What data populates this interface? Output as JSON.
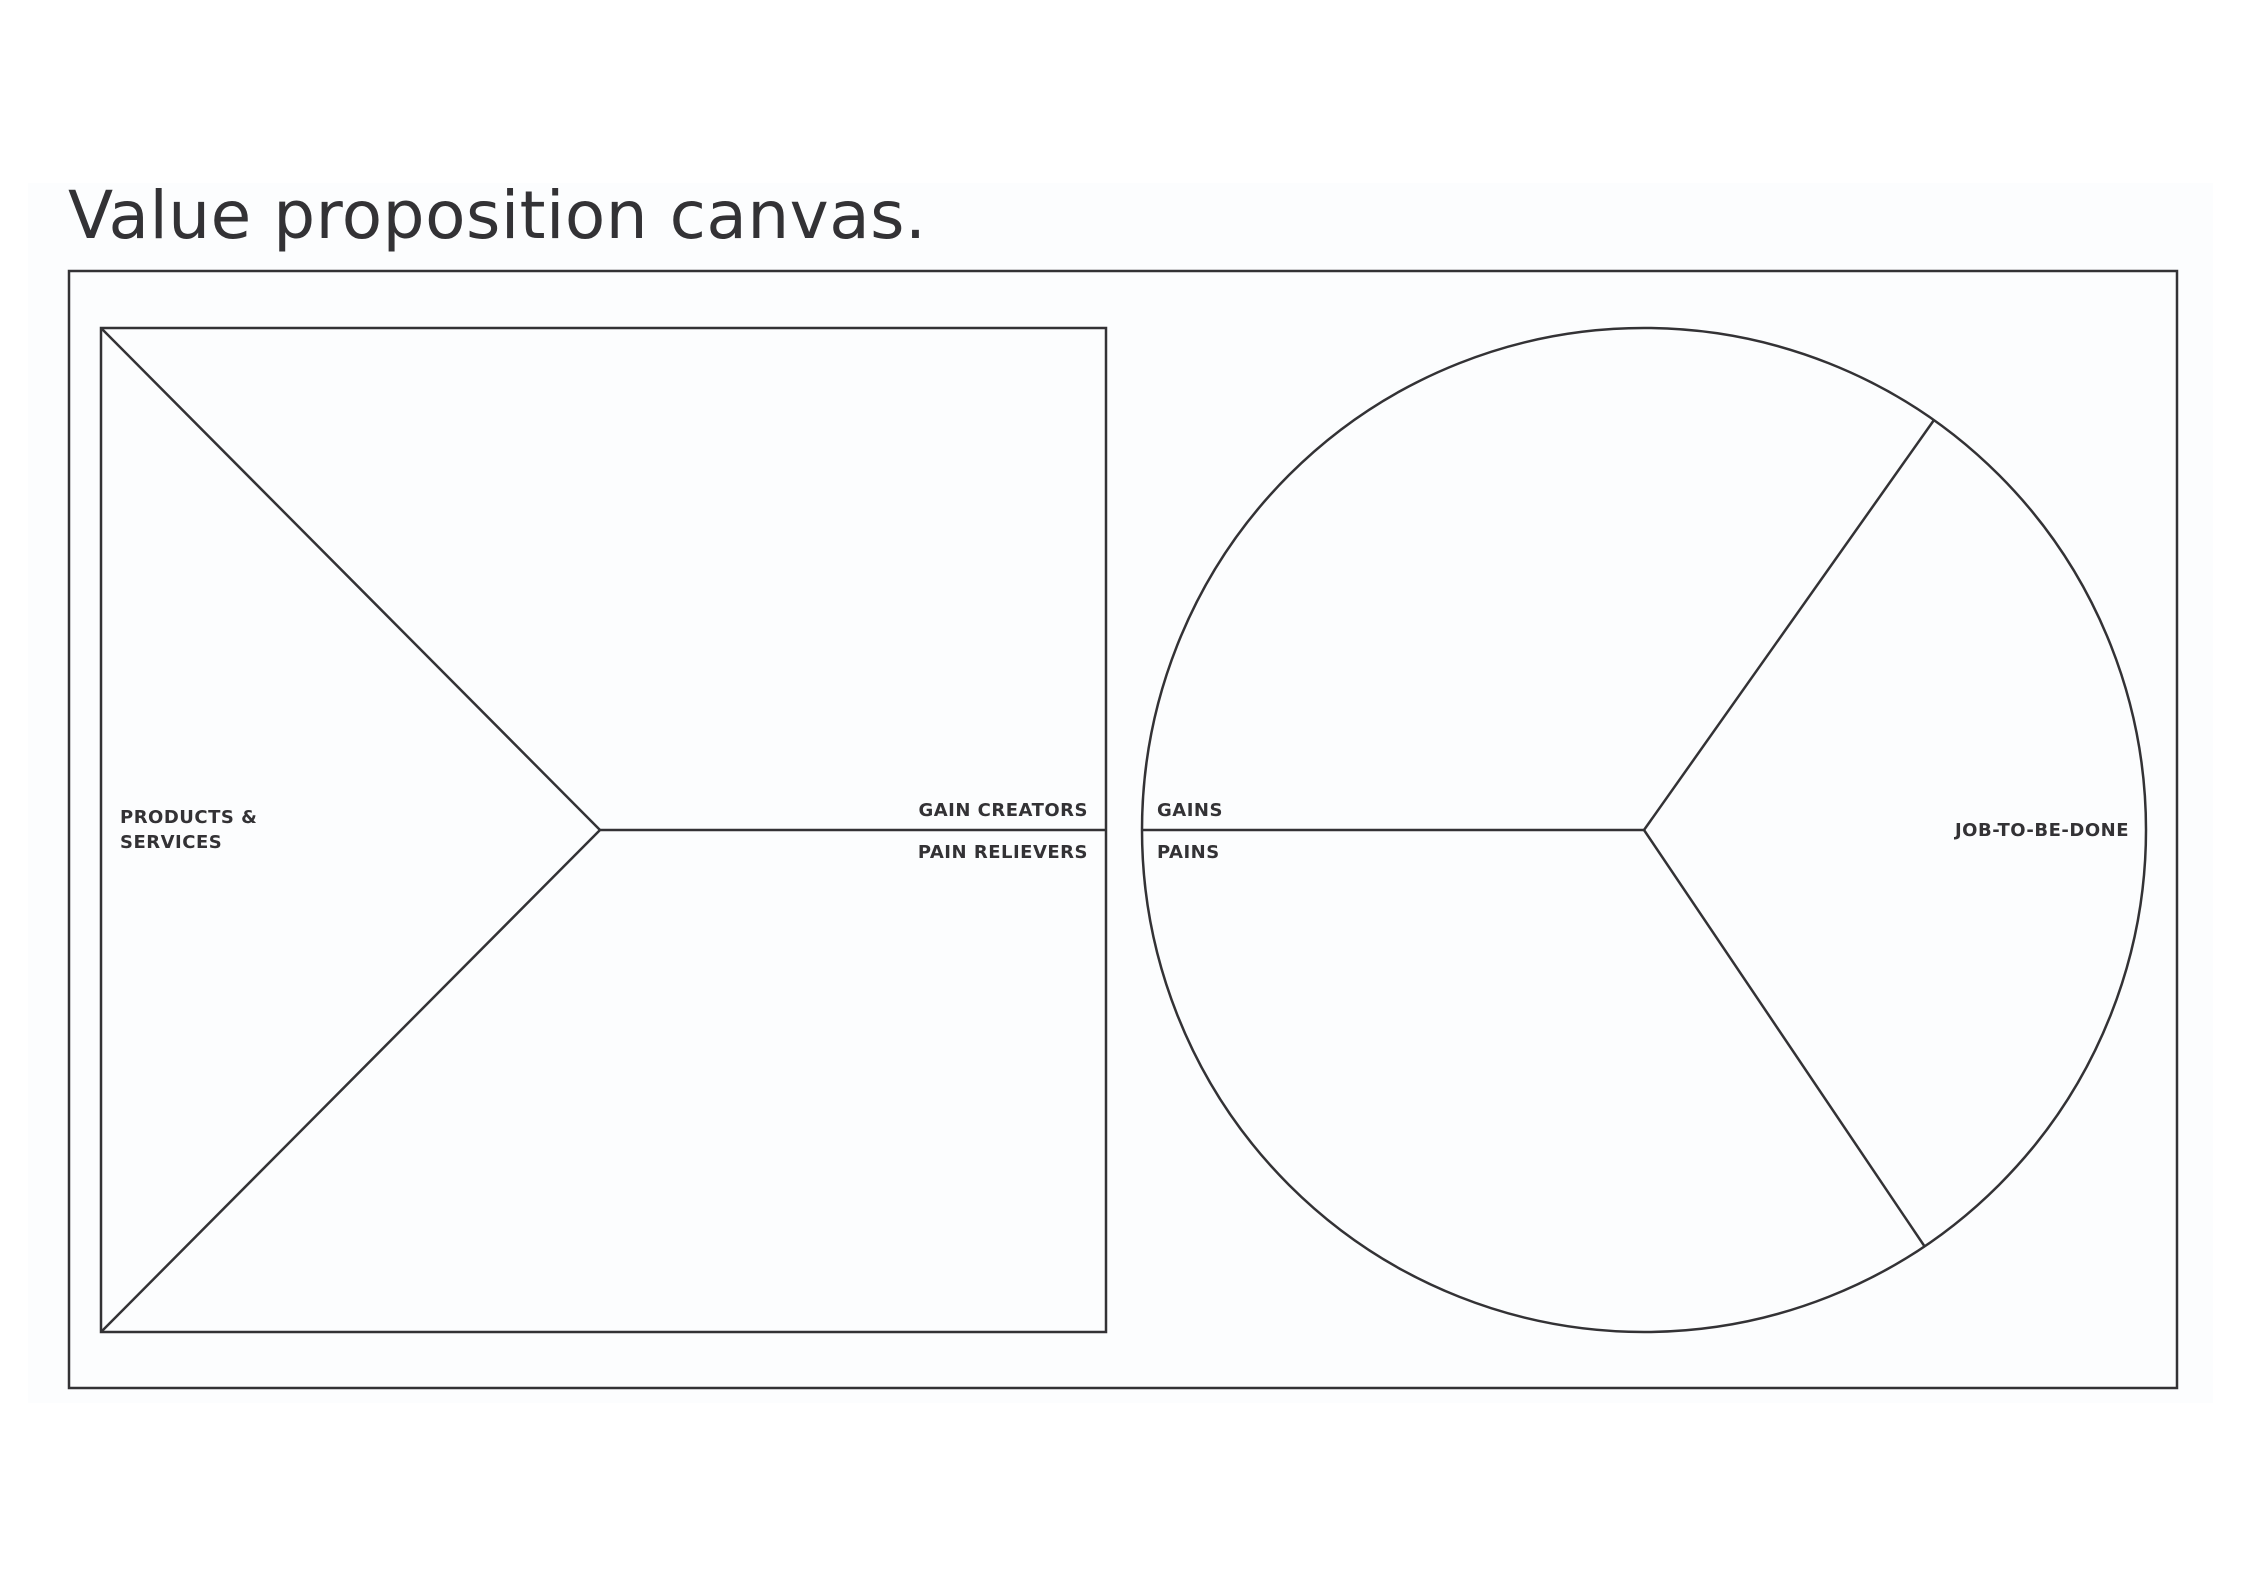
{
  "title": "Value proposition canvas.",
  "value_map": {
    "products_services": [
      "PRODUCTS &",
      "SERVICES"
    ],
    "gain_creators": "GAIN CREATORS",
    "pain_relievers": "PAIN RELIEVERS"
  },
  "customer_profile": {
    "gains": "GAINS",
    "pains": "PAINS",
    "job_to_be_done": "JOB-TO-BE-DONE"
  },
  "colors": {
    "line": "#333235",
    "panel": "#fcfdfe"
  }
}
